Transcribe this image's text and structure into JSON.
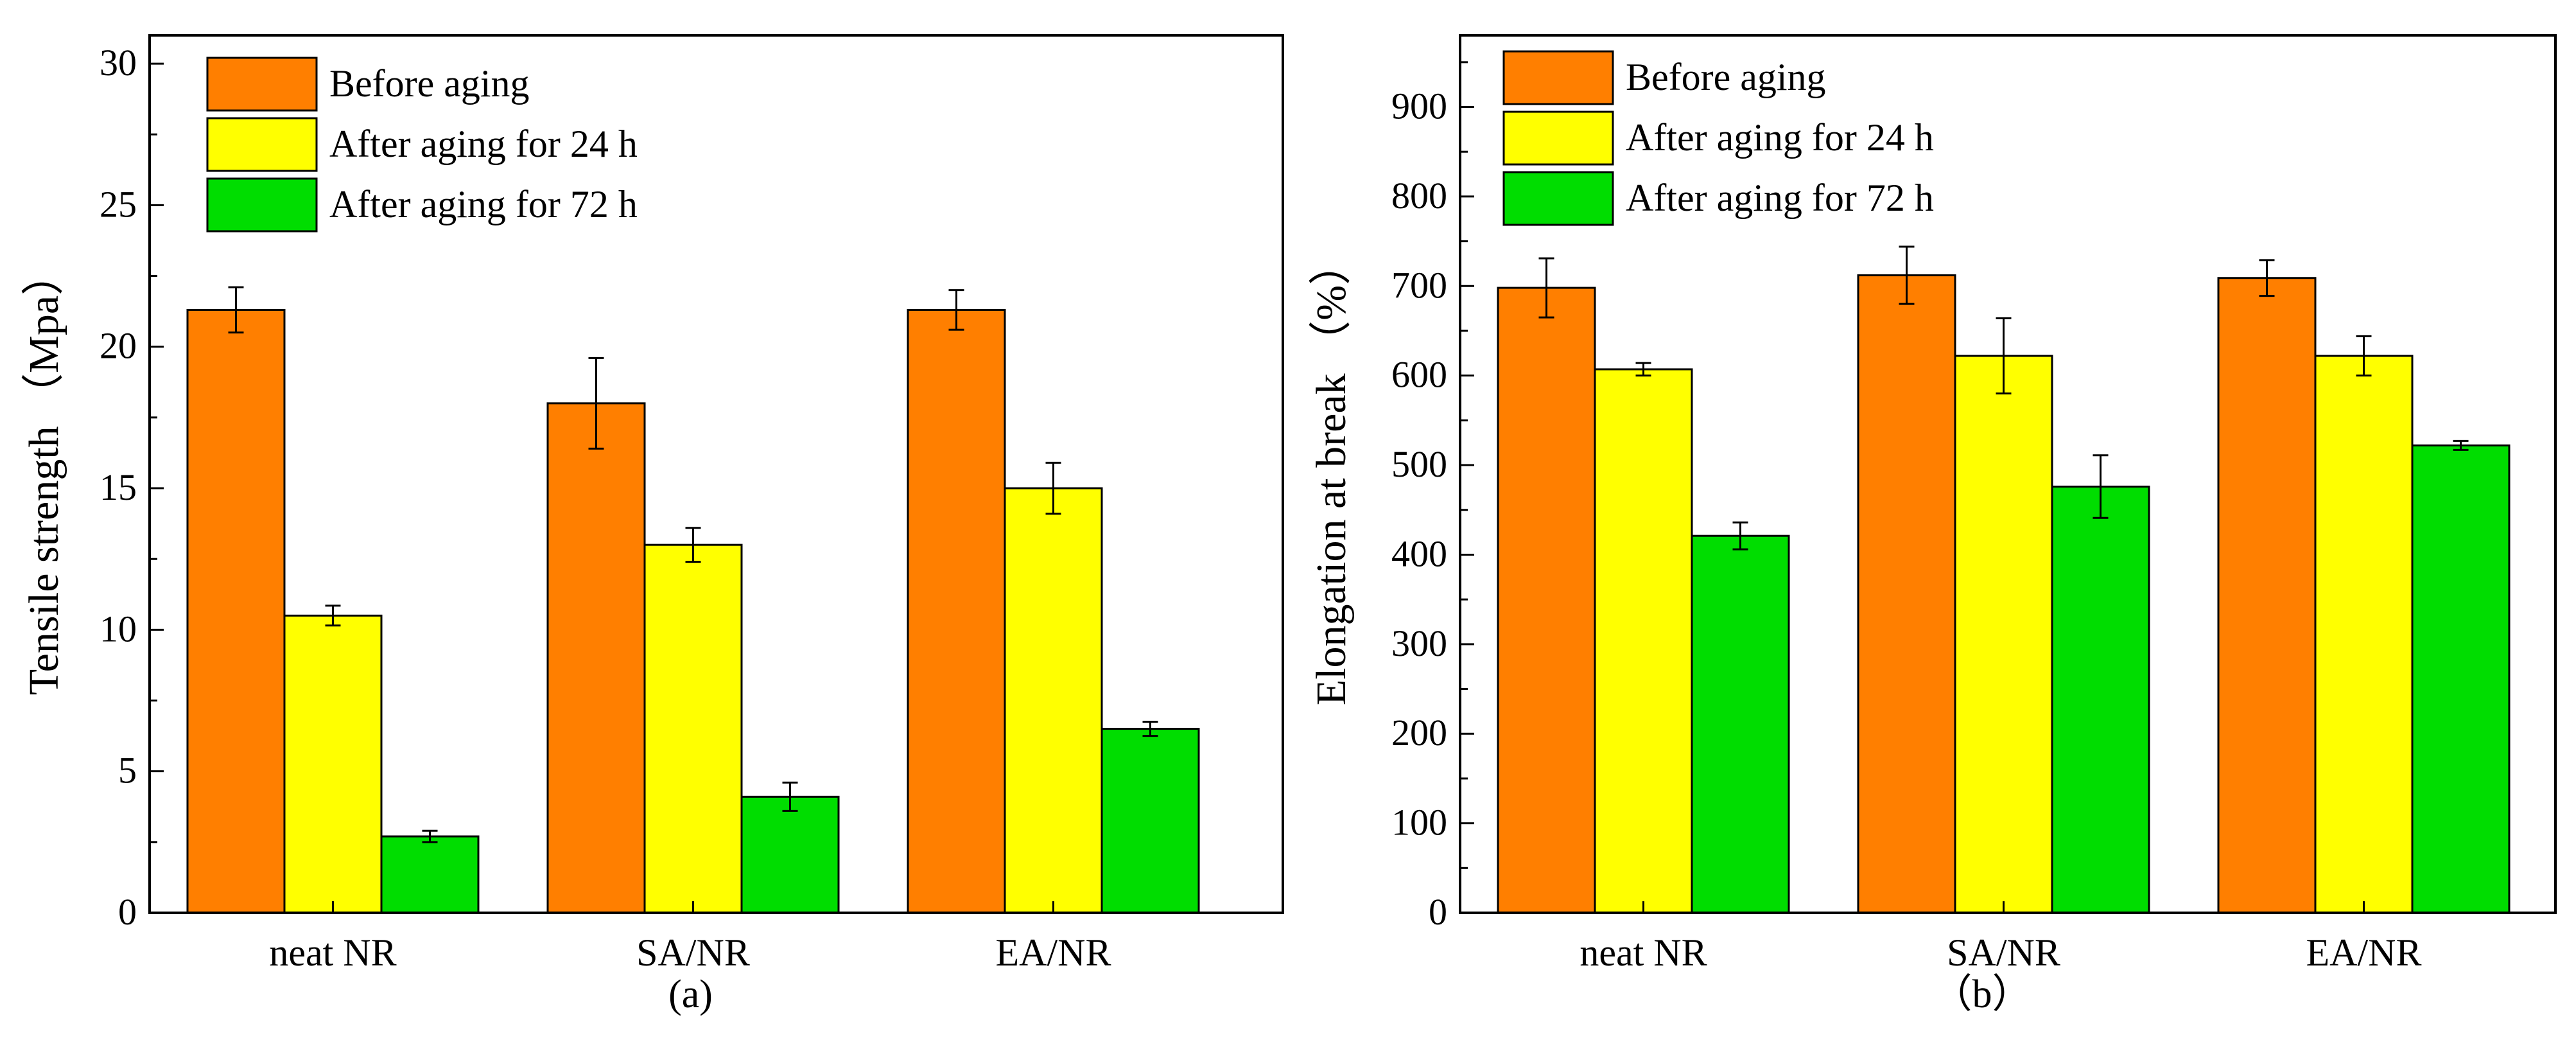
{
  "colors": {
    "before": "#ff7f00",
    "after24": "#ffff00",
    "after72": "#00dd00",
    "frame": "#000000"
  },
  "chart_data": [
    {
      "type": "bar",
      "panel_label": "(a)",
      "categories": [
        "neat NR",
        "SA/NR",
        "EA/NR"
      ],
      "ylabel": "Tensile strength （Mpa）",
      "xlabel": "",
      "ylim": [
        0,
        31
      ],
      "yticks": [
        0,
        5,
        10,
        15,
        20,
        25,
        30
      ],
      "minor_ticks": true,
      "legend_position": "top-left",
      "series": [
        {
          "name": "Before aging",
          "color_key": "before",
          "values": [
            21.3,
            18.0,
            21.3
          ],
          "errors": [
            0.8,
            1.6,
            0.7
          ]
        },
        {
          "name": "After aging for 24 h",
          "color_key": "after24",
          "values": [
            10.5,
            13.0,
            15.0
          ],
          "errors": [
            0.35,
            0.6,
            0.9
          ]
        },
        {
          "name": "After aging for 72 h",
          "color_key": "after72",
          "values": [
            2.7,
            4.1,
            6.5
          ],
          "errors": [
            0.2,
            0.5,
            0.25
          ]
        }
      ]
    },
    {
      "type": "bar",
      "panel_label": "（b）",
      "categories": [
        "neat NR",
        "SA/NR",
        "EA/NR"
      ],
      "ylabel": "Elongation at break （%）",
      "xlabel": "",
      "ylim": [
        0,
        980
      ],
      "yticks": [
        0,
        100,
        200,
        300,
        400,
        500,
        600,
        700,
        800,
        900
      ],
      "minor_ticks": true,
      "legend_position": "top-left",
      "series": [
        {
          "name": "Before aging",
          "color_key": "before",
          "values": [
            698,
            712,
            709
          ],
          "errors": [
            33,
            32,
            20
          ]
        },
        {
          "name": "After aging for 24 h",
          "color_key": "after24",
          "values": [
            607,
            622,
            622
          ],
          "errors": [
            7,
            42,
            22
          ]
        },
        {
          "name": "After aging for 72 h",
          "color_key": "after72",
          "values": [
            421,
            476,
            522
          ],
          "errors": [
            15,
            35,
            5
          ]
        }
      ]
    }
  ]
}
